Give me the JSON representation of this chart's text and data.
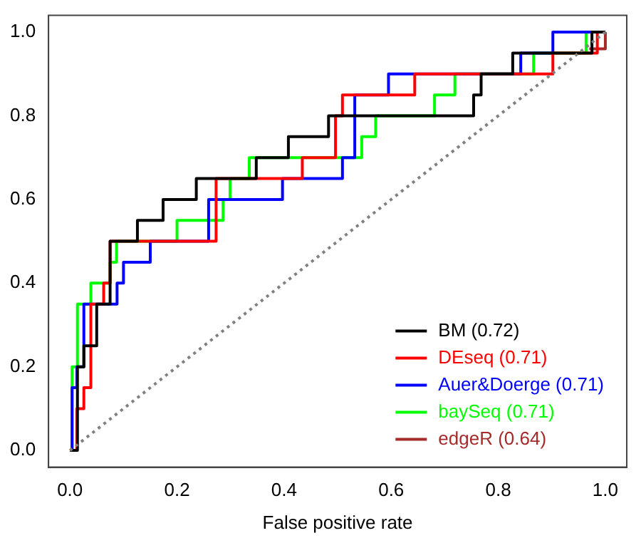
{
  "chart_data": {
    "type": "step",
    "xlabel": "False positive rate",
    "xlim": [
      -0.04,
      1.04
    ],
    "ylim": [
      -0.04,
      1.04
    ],
    "xticks": [
      {
        "value": 0,
        "label": "0.0"
      },
      {
        "value": 0.2,
        "label": "0.2"
      },
      {
        "value": 0.4,
        "label": "0.4"
      },
      {
        "value": 0.6,
        "label": "0.6"
      },
      {
        "value": 0.8,
        "label": "0.8"
      },
      {
        "value": 1,
        "label": "1.0"
      }
    ],
    "yticks": [
      {
        "value": 0,
        "label": "0.0"
      },
      {
        "value": 0.2,
        "label": "0.2"
      },
      {
        "value": 0.4,
        "label": "0.4"
      },
      {
        "value": 0.6,
        "label": "0.6"
      },
      {
        "value": 0.8,
        "label": "0.8"
      },
      {
        "value": 1,
        "label": "1.0"
      }
    ],
    "grid": false,
    "legend": "bottom right",
    "marker": "none",
    "series": [
      {
        "type": "line",
        "color": "#808080",
        "line_style": "dotted",
        "x": [
          0,
          1
        ],
        "values": [
          0,
          1
        ]
      },
      {
        "name": "BM (0.72)",
        "color": "#000000",
        "x": [
          0,
          0.014,
          0.026,
          0.05,
          0.075,
          0.126,
          0.174,
          0.236,
          0.348,
          0.408,
          0.483,
          0.754,
          0.768,
          0.827,
          0.975,
          1
        ],
        "values": [
          0,
          0.2,
          0.25,
          0.35,
          0.5,
          0.55,
          0.6,
          0.65,
          0.7,
          0.75,
          0.8,
          0.85,
          0.9,
          0.95,
          1,
          1
        ]
      },
      {
        "name": "DEseq (0.71)",
        "color": "#ff0000",
        "x": [
          0,
          0.013,
          0.026,
          0.039,
          0.063,
          0.075,
          0.273,
          0.434,
          0.496,
          0.509,
          0.644,
          0.902,
          0.985,
          1
        ],
        "values": [
          0,
          0.1,
          0.15,
          0.35,
          0.4,
          0.5,
          0.65,
          0.7,
          0.8,
          0.85,
          0.9,
          0.95,
          1,
          1
        ]
      },
      {
        "name": "Auer&Doerge (0.71)",
        "color": "#0000ff",
        "x": [
          0,
          0.004,
          0.013,
          0.026,
          0.088,
          0.1,
          0.15,
          0.259,
          0.397,
          0.509,
          0.532,
          0.595,
          0.842,
          0.902,
          1
        ],
        "values": [
          0,
          0.15,
          0.2,
          0.35,
          0.4,
          0.45,
          0.5,
          0.6,
          0.65,
          0.7,
          0.85,
          0.9,
          0.95,
          1,
          1
        ]
      },
      {
        "name": "baySeq (0.71)",
        "color": "#00ff00",
        "x": [
          0,
          0.004,
          0.014,
          0.039,
          0.075,
          0.087,
          0.2,
          0.286,
          0.299,
          0.335,
          0.545,
          0.571,
          0.681,
          0.719,
          0.866,
          0.964,
          1
        ],
        "values": [
          0,
          0.2,
          0.35,
          0.4,
          0.45,
          0.5,
          0.55,
          0.6,
          0.65,
          0.7,
          0.75,
          0.8,
          0.85,
          0.9,
          0.95,
          1,
          1
        ]
      },
      {
        "name": "edgeR (0.64)",
        "color": "#a52a2a",
        "x": [
          0.97,
          1
        ],
        "values": [
          0.96,
          1
        ]
      }
    ]
  }
}
